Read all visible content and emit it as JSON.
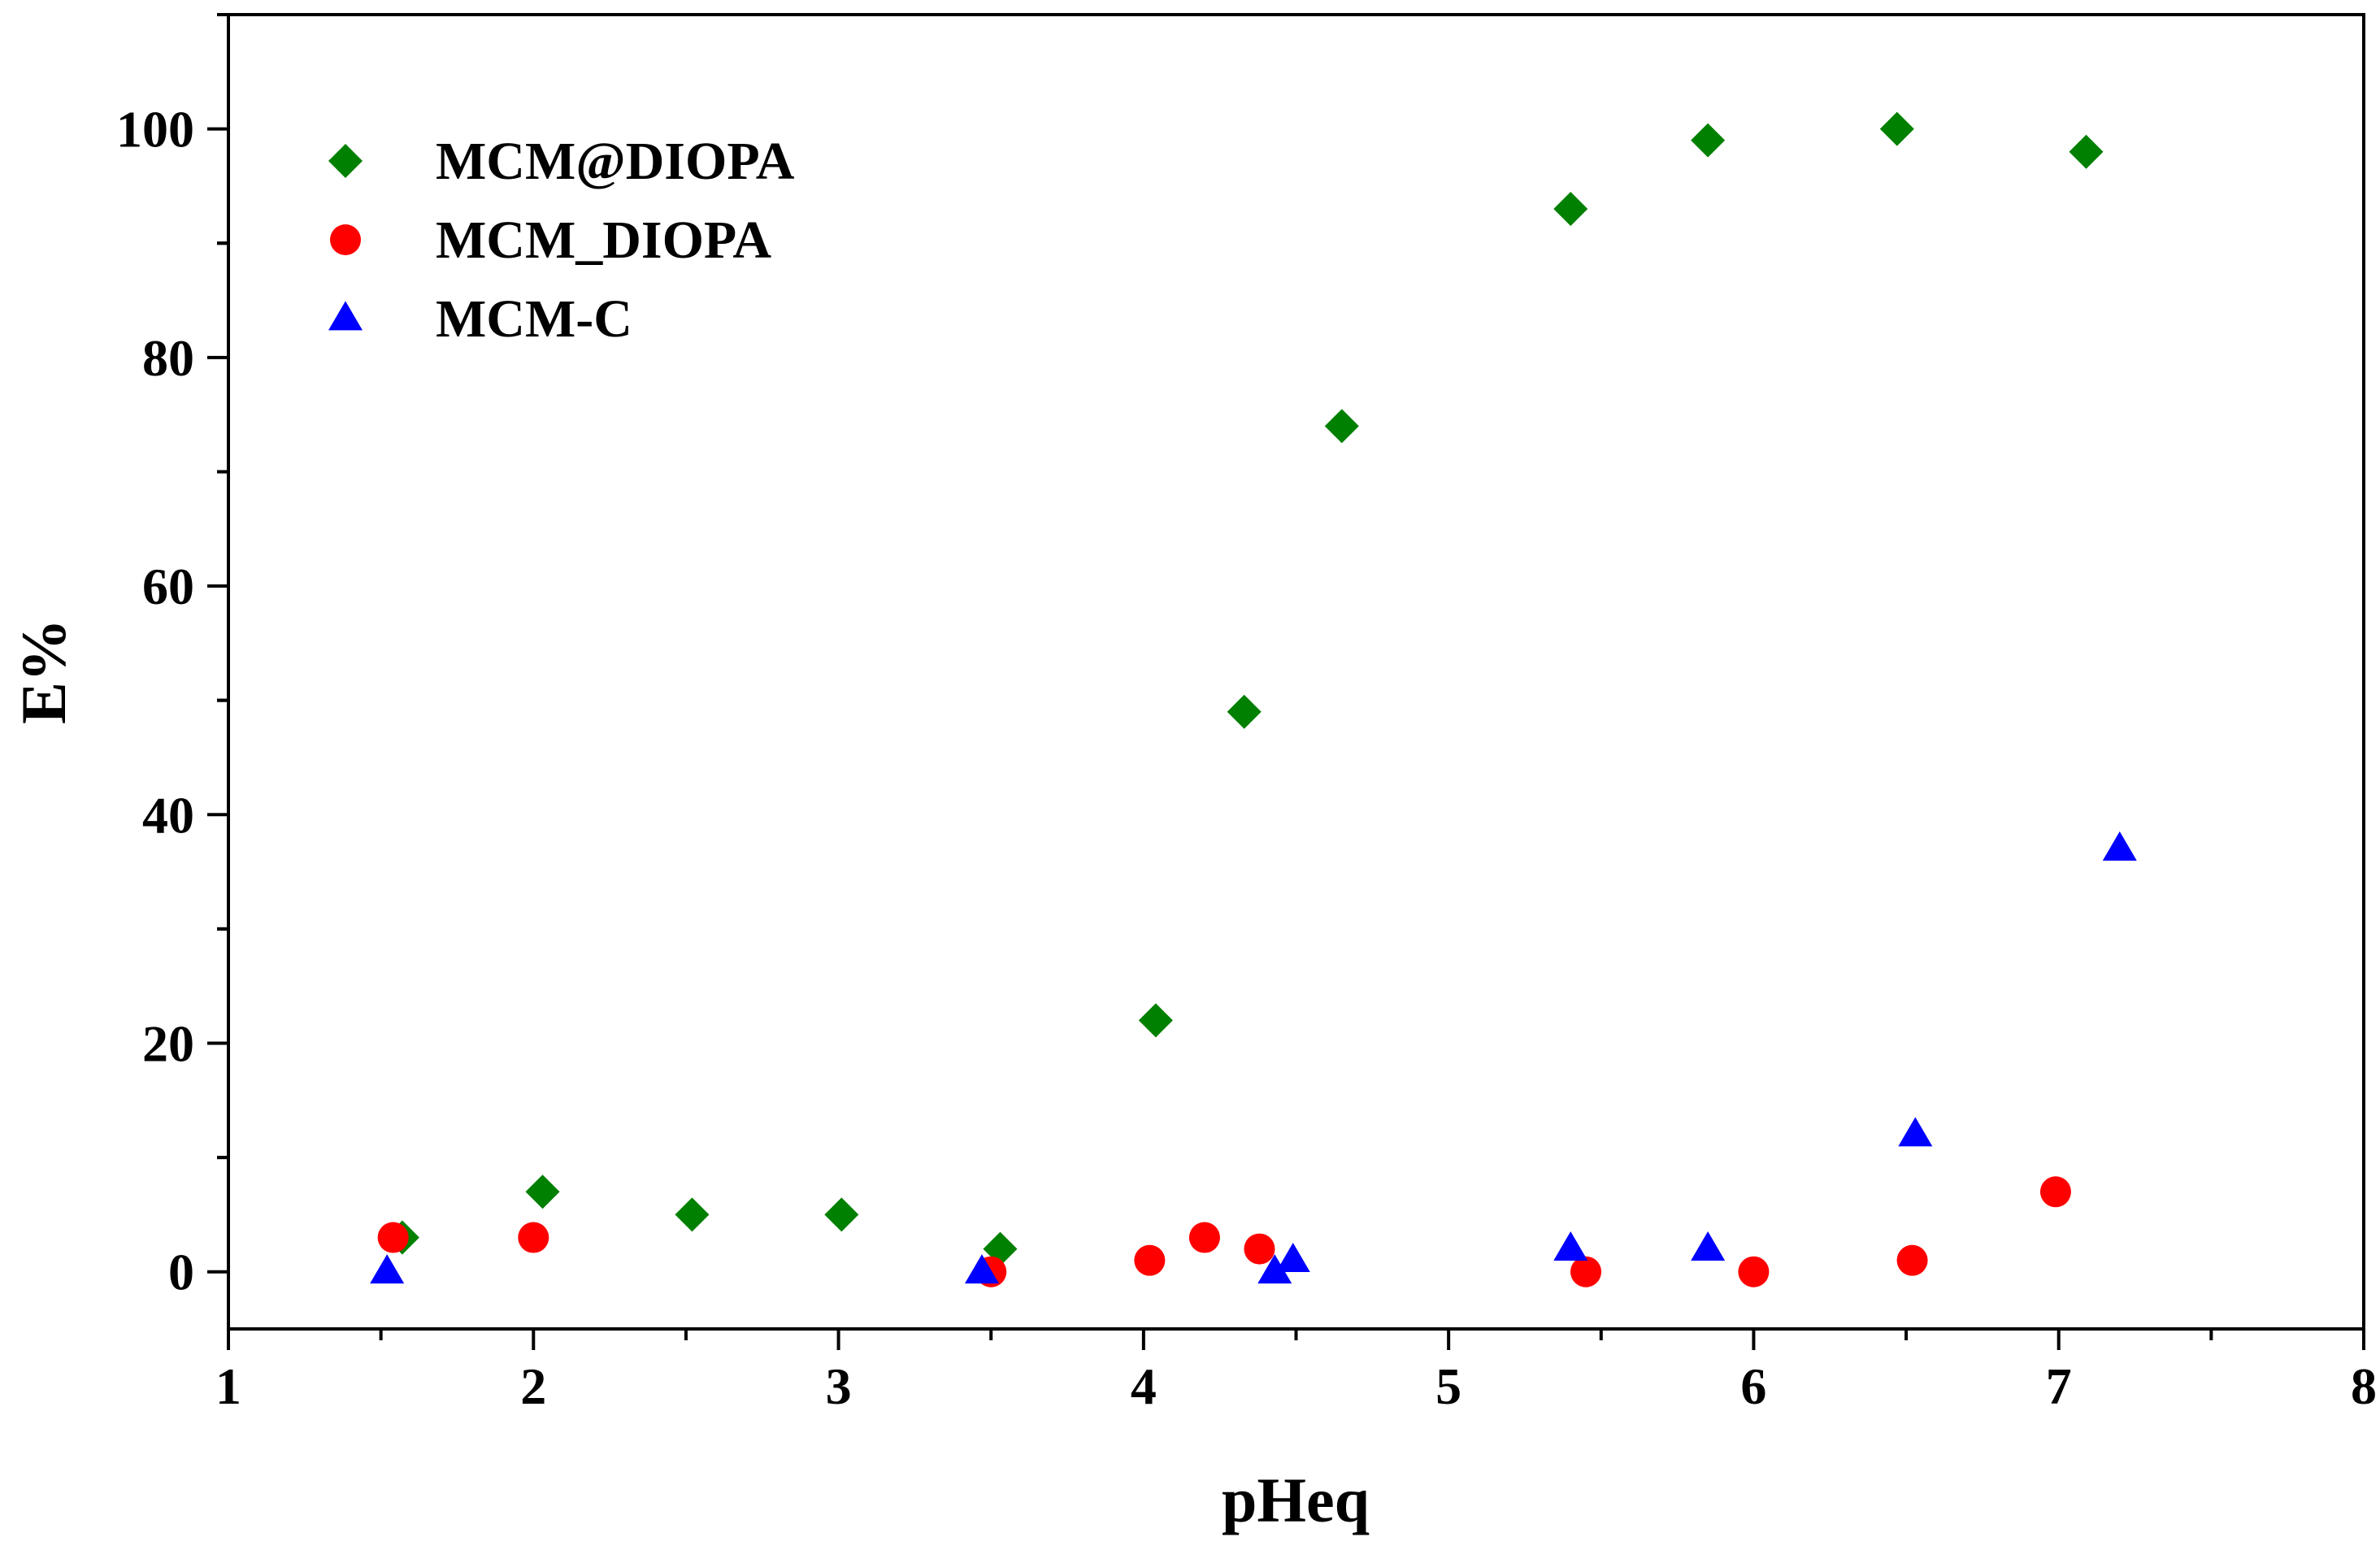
{
  "chart_data": {
    "type": "scatter",
    "title": "",
    "xlabel": "pHeq",
    "ylabel": "E%",
    "xlim": [
      1,
      8
    ],
    "ylim": [
      -5,
      110
    ],
    "xticks": [
      1,
      2,
      3,
      4,
      5,
      6,
      7,
      8
    ],
    "yticks": [
      0,
      20,
      40,
      60,
      80,
      100
    ],
    "grid": false,
    "legend_position": "top-left",
    "series": [
      {
        "name": "MCM@DIOPA",
        "marker": "diamond",
        "color": "#008000",
        "x": [
          1.57,
          2.03,
          2.52,
          3.01,
          3.53,
          4.04,
          4.33,
          4.65,
          5.4,
          5.85,
          6.47,
          7.09
        ],
        "y": [
          3,
          7,
          5,
          5,
          2,
          22,
          49,
          74,
          93,
          99,
          100,
          98
        ]
      },
      {
        "name": "MCM_DIOPA",
        "marker": "circle",
        "color": "#ff0000",
        "x": [
          1.54,
          2.0,
          3.5,
          4.02,
          4.2,
          4.38,
          5.45,
          6.0,
          6.52,
          6.99
        ],
        "y": [
          3,
          3,
          0,
          1,
          3,
          2,
          0,
          0,
          1,
          7
        ]
      },
      {
        "name": "MCM-C",
        "marker": "triangle",
        "color": "#0000ff",
        "x": [
          1.52,
          3.47,
          4.43,
          4.49,
          5.4,
          5.85,
          6.53,
          7.2
        ],
        "y": [
          0,
          0,
          0,
          1,
          2,
          2,
          12,
          37
        ]
      }
    ]
  }
}
